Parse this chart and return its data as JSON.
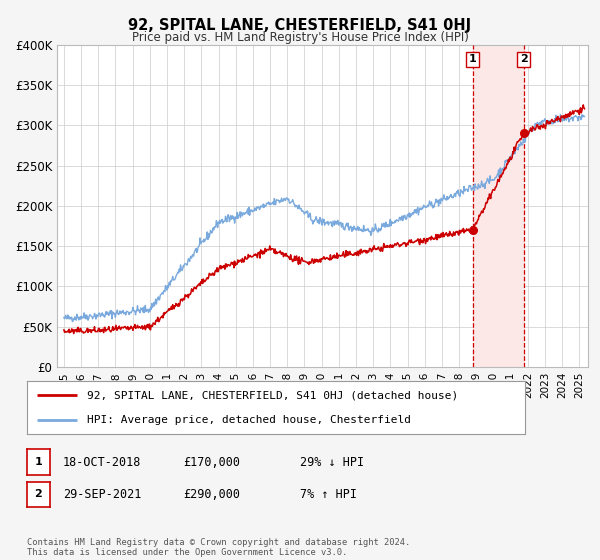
{
  "title": "92, SPITAL LANE, CHESTERFIELD, S41 0HJ",
  "subtitle": "Price paid vs. HM Land Registry's House Price Index (HPI)",
  "ylim": [
    0,
    400000
  ],
  "xlim_start": 1994.6,
  "xlim_end": 2025.5,
  "ytick_values": [
    0,
    50000,
    100000,
    150000,
    200000,
    250000,
    300000,
    350000,
    400000
  ],
  "ytick_labels": [
    "£0",
    "£50K",
    "£100K",
    "£150K",
    "£200K",
    "£250K",
    "£300K",
    "£350K",
    "£400K"
  ],
  "hpi_color": "#7aaadd",
  "price_color": "#cc0000",
  "marker_color": "#cc0000",
  "vline_color": "#cc0000",
  "shaded_color": "#fde8e8",
  "event1_x": 2018.79,
  "event1_y": 170000,
  "event2_x": 2021.75,
  "event2_y": 290000,
  "legend_label1": "92, SPITAL LANE, CHESTERFIELD, S41 0HJ (detached house)",
  "legend_label2": "HPI: Average price, detached house, Chesterfield",
  "event1_date": "18-OCT-2018",
  "event1_price": "£170,000",
  "event1_hpi": "29% ↓ HPI",
  "event2_date": "29-SEP-2021",
  "event2_price": "£290,000",
  "event2_hpi": "7% ↑ HPI",
  "footer": "Contains HM Land Registry data © Crown copyright and database right 2024.\nThis data is licensed under the Open Government Licence v3.0.",
  "background_color": "#f5f5f5",
  "plot_bg_color": "#ffffff",
  "grid_color": "#cccccc"
}
